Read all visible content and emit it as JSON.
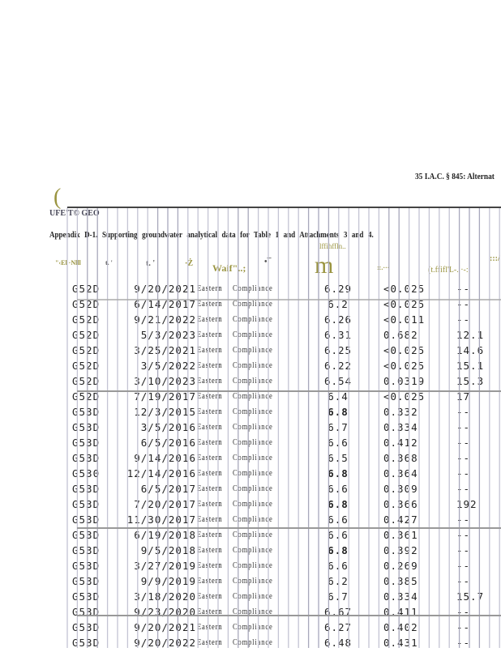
{
  "header": {
    "regulation": "35 I.A.C. § 845: Alternat",
    "logo_text": "UFE'T© GEO"
  },
  "caption": "Appendix D-1. Supporting groundwater analytical data for Table 1 and Attachments 3 and 4.",
  "column_headers": [
    "\"‹El ·Nlll",
    "t. '",
    "·Ż",
    "Waif\"..;",
    "•¯",
    "lffihffln..",
    "m",
    "::.···",
    "(t.ffifl'L-. ·-:",
    ":::/"
  ],
  "rows": [
    {
      "well": "G52D",
      "date": "9/20/2021",
      "region": "Eastern",
      "type": "Compliance",
      "ph": "6.29",
      "v1": "<0.025",
      "v2": "--"
    },
    {
      "well": "G52D",
      "date": "6/14/2017",
      "region": "Eastern",
      "type": "Compliance",
      "ph": "6.2",
      "v1": "<0.025",
      "v2": "--"
    },
    {
      "well": "G52D",
      "date": "9/21/2022",
      "region": "Eastern",
      "type": "Compliance",
      "ph": "6.26",
      "v1": "<0.011",
      "v2": "--"
    },
    {
      "well": "G52D",
      "date": "5/3/2023",
      "region": "Eastern",
      "type": "Compliance",
      "ph": "6.31",
      "v1": "0.682",
      "v2": "12.1"
    },
    {
      "well": "G52D",
      "date": "3/25/2021",
      "region": "Eastern",
      "type": "Compliance",
      "ph": "6.25",
      "v1": "<0.025",
      "v2": "14.6"
    },
    {
      "well": "G52D",
      "date": "3/5/2022",
      "region": "Eastern",
      "type": "Compliance",
      "ph": "6.22",
      "v1": "<0.025",
      "v2": "15.1"
    },
    {
      "well": "G52D",
      "date": "3/10/2023",
      "region": "Eastern",
      "type": "Compliance",
      "ph": "6.54",
      "v1": "0.0319",
      "v2": "15.3"
    },
    {
      "well": "G52D",
      "date": "7/19/2017",
      "region": "Eastern",
      "type": "Compliance",
      "ph": "6.4",
      "v1": "<0.025",
      "v2": "17"
    },
    {
      "well": "G53D",
      "date": "12/3/2015",
      "region": "Eastern",
      "type": "Compliance",
      "ph": "6.8",
      "v1": "0.332",
      "v2": "--",
      "bold": true
    },
    {
      "well": "G53D",
      "date": "3/5/2016",
      "region": "Eastern",
      "type": "Compliance",
      "ph": "6.7",
      "v1": "0.334",
      "v2": "--"
    },
    {
      "well": "G53D",
      "date": "6/5/2016",
      "region": "Eastern",
      "type": "Compliance",
      "ph": "6.6",
      "v1": "0.412",
      "v2": "--"
    },
    {
      "well": "G53D",
      "date": "9/14/2016",
      "region": "Eastern",
      "type": "Compliance",
      "ph": "6.5",
      "v1": "0.368",
      "v2": "--"
    },
    {
      "well": "G530",
      "date": "12/14/2016",
      "region": "Eastern",
      "type": "Compliance",
      "ph": "6.8",
      "v1": "0.364",
      "v2": "--",
      "bold": true
    },
    {
      "well": "G53D",
      "date": "6/5/2017",
      "region": "Eastern",
      "type": "Compliance",
      "ph": "6.6",
      "v1": "0.309",
      "v2": "--"
    },
    {
      "well": "G53D",
      "date": "7/20/2017",
      "region": "Eastern",
      "type": "Compliance",
      "ph": "6.8",
      "v1": "0.366",
      "v2": "192",
      "bold": true
    },
    {
      "well": "G53D",
      "date": "11/30/2017",
      "region": "Eastern",
      "type": "Compliance",
      "ph": "6.6",
      "v1": "0.427",
      "v2": "--"
    },
    {
      "well": "G53D",
      "date": "6/19/2018",
      "region": "Eastern",
      "type": "Compliance",
      "ph": "6.6",
      "v1": "0.361",
      "v2": "--"
    },
    {
      "well": "G53D",
      "date": "9/5/2018",
      "region": "Eastern",
      "type": "Compliance",
      "ph": "6.8",
      "v1": "0.392",
      "v2": "--",
      "bold": true
    },
    {
      "well": "G53D",
      "date": "3/27/2019",
      "region": "Eastern",
      "type": "Compliance",
      "ph": "6.6",
      "v1": "0.269",
      "v2": "--"
    },
    {
      "well": "G53D",
      "date": "9/9/2019",
      "region": "Eastern",
      "type": "Compliance",
      "ph": "6.2",
      "v1": "0.385",
      "v2": "--"
    },
    {
      "well": "G53D",
      "date": "3/18/2020",
      "region": "Eastern",
      "type": "Compliance",
      "ph": "6.7",
      "v1": "0.334",
      "v2": "15.7"
    },
    {
      "well": "G53D",
      "date": "9/23/2020",
      "region": "Eastern",
      "type": "Compliance",
      "ph": "6.67",
      "v1": "0.411",
      "v2": "--"
    },
    {
      "well": "G53D",
      "date": "9/20/2021",
      "region": "Eastern",
      "type": "Compliance",
      "ph": "6.27",
      "v1": "0.402",
      "v2": "--"
    },
    {
      "well": "G53D",
      "date": "9/20/2022",
      "region": "Eastern",
      "type": "Compliance",
      "ph": "6.48",
      "v1": "0.431",
      "v2": "--"
    }
  ]
}
